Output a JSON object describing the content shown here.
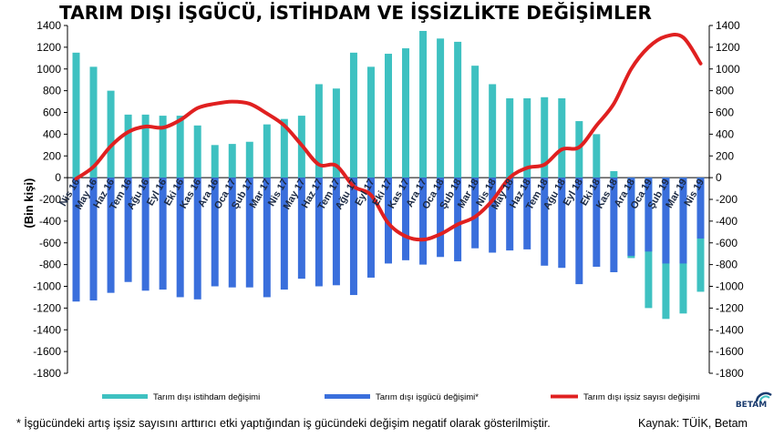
{
  "chart_data": {
    "type": "bar",
    "title": "TARIM DIŞI İŞGÜCÜ, İSTİHDAM VE İŞSİZLİKTE DEĞİŞİMLER",
    "ylabel": "(Bin kişi)",
    "ylim": [
      -1800,
      1400
    ],
    "yticks": [
      1400,
      1200,
      1000,
      800,
      600,
      400,
      200,
      0,
      -200,
      -400,
      -600,
      -800,
      -1000,
      -1200,
      -1400,
      -1600,
      -1800
    ],
    "ytick_labels": [
      "1400",
      "1200",
      "1000",
      "800",
      "600",
      "400",
      "200",
      "0",
      "-200",
      "-400",
      "-600",
      "-800",
      "-1000",
      "-1200",
      "-1400",
      "-1600",
      "-1800"
    ],
    "grid": false,
    "legend": "bottom",
    "categories": [
      "Nis 16",
      "May 16",
      "Haz 16",
      "Tem 16",
      "Ağu 16",
      "Eyl 16",
      "Eki 16",
      "Kas 16",
      "Ara 16",
      "Oca 17",
      "Şub 17",
      "Mar 17",
      "Nis 17",
      "May 17",
      "Haz 17",
      "Tem 17",
      "Ağu 17",
      "Eyl 17",
      "Eki 17",
      "Kas 17",
      "Ara 17",
      "Oca 18",
      "Şub 18",
      "Mar 18",
      "Nis 18",
      "May 18",
      "Haz 18",
      "Tem 18",
      "Ağu 18",
      "Eyl 18",
      "Eki 18",
      "Kas 18",
      "Ara 18",
      "Oca 19",
      "Şub 19",
      "Mar 19",
      "Nis 19"
    ],
    "series": [
      {
        "name": "Tarım dışı istihdam değişimi",
        "kind": "bar",
        "color": "#3ec1c1",
        "values": [
          1150,
          1020,
          800,
          580,
          580,
          570,
          570,
          480,
          300,
          310,
          330,
          490,
          540,
          570,
          860,
          820,
          1150,
          1020,
          1140,
          1190,
          1350,
          1280,
          1250,
          1030,
          860,
          730,
          730,
          740,
          730,
          520,
          400,
          60,
          -740,
          -1200,
          -1300,
          -1250,
          -1050
        ]
      },
      {
        "name": "Tarım dışı işgücü değişimi*",
        "kind": "bar",
        "color": "#3a6fdc",
        "values": [
          -1140,
          -1130,
          -1060,
          -960,
          -1040,
          -1030,
          -1100,
          -1120,
          -1000,
          -1010,
          -1010,
          -1100,
          -1030,
          -930,
          -1000,
          -990,
          -1080,
          -920,
          -790,
          -760,
          -800,
          -730,
          -770,
          -650,
          -690,
          -670,
          -660,
          -810,
          -830,
          -980,
          -820,
          -870,
          -720,
          -680,
          -790,
          -790,
          -560
        ]
      },
      {
        "name": "Tarım dışı işsiz sayısı değişimi",
        "kind": "line",
        "color": "#e02020",
        "values": [
          -10,
          100,
          290,
          420,
          470,
          460,
          530,
          640,
          680,
          700,
          680,
          590,
          480,
          300,
          120,
          110,
          -80,
          -160,
          -420,
          -540,
          -570,
          -520,
          -430,
          -360,
          -210,
          0,
          90,
          120,
          260,
          280,
          480,
          680,
          1000,
          1200,
          1300,
          1290,
          1050
        ]
      }
    ]
  },
  "footnote": "* İşgücündeki artış işsiz sayısını arttırıcı etki yaptığından iş gücündeki değişim negatif olarak gösterilmiştir.",
  "source": "Kaynak: TÜİK, Betam",
  "logo": {
    "text": "BETAM",
    "color": "#1a3b6e"
  }
}
